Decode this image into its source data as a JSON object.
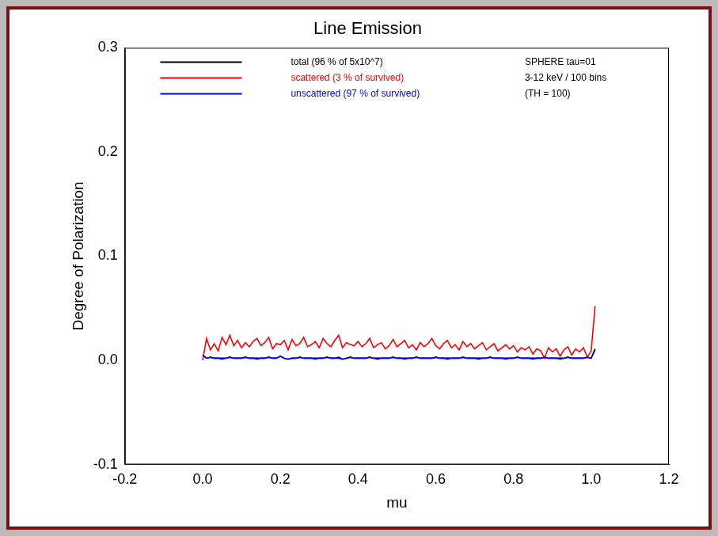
{
  "chart_data": {
    "type": "line",
    "title": "Line Emission",
    "x_label": "mu",
    "y_label": "Degree of Polarization",
    "xlim": [
      -0.2,
      1.2
    ],
    "xticks": [
      -0.2,
      {
        "value": 0,
        "label": "0.0"
      },
      0.2,
      0.4,
      0.6,
      0.8,
      {
        "value": 1,
        "label": "1.0"
      },
      1.2
    ],
    "ylim": [
      -0.1,
      0.3
    ],
    "yticks": [
      -0.1,
      {
        "value": 0,
        "label": "0.0"
      },
      0.1,
      0.2,
      0.3
    ],
    "grid": false,
    "legend": "upper left",
    "annotations": [
      "SPHERE tau=01",
      "3-12 keV / 100 bins",
      "(TH = 100)"
    ],
    "x": [
      0,
      0.01,
      0.02,
      0.03,
      0.04,
      0.05,
      0.06,
      0.07,
      0.08,
      0.09,
      0.1,
      0.11,
      0.12,
      0.13,
      0.14,
      0.15,
      0.16,
      0.17,
      0.18,
      0.19,
      0.2,
      0.21,
      0.22,
      0.23,
      0.24,
      0.25,
      0.26,
      0.27,
      0.28,
      0.29,
      0.3,
      0.31,
      0.32,
      0.33,
      0.34,
      0.35,
      0.36,
      0.37,
      0.38,
      0.39,
      0.4,
      0.41,
      0.42,
      0.43,
      0.44,
      0.45,
      0.46,
      0.47,
      0.48,
      0.49,
      0.5,
      0.51,
      0.52,
      0.53,
      0.54,
      0.55,
      0.56,
      0.57,
      0.58,
      0.59,
      0.6,
      0.61,
      0.62,
      0.63,
      0.64,
      0.65,
      0.66,
      0.67,
      0.68,
      0.69,
      0.7,
      0.71,
      0.72,
      0.73,
      0.74,
      0.75,
      0.76,
      0.77,
      0.78,
      0.79,
      0.8,
      0.81,
      0.82,
      0.83,
      0.84,
      0.85,
      0.86,
      0.87,
      0.88,
      0.89,
      0.9,
      0.91,
      0.92,
      0.93,
      0.94,
      0.95,
      0.96,
      0.97,
      0.98,
      0.99,
      1,
      1.01
    ],
    "series": [
      {
        "name": "total (96 % of 5x10^7)",
        "color": "#000000",
        "values": [
          0.005,
          0.002,
          0.003,
          0.002,
          0.002,
          0.002,
          0.002,
          0.003,
          0.002,
          0.002,
          0.002,
          0.003,
          0.002,
          0.002,
          0.002,
          0.002,
          0.002,
          0.003,
          0.002,
          0.002,
          0.004,
          0.002,
          0.001,
          0.002,
          0.002,
          0.003,
          0.002,
          0.002,
          0.002,
          0.002,
          0.002,
          0.002,
          0.003,
          0.002,
          0.002,
          0.003,
          0.001,
          0.002,
          0.003,
          0.002,
          0.002,
          0.002,
          0.002,
          0.003,
          0.002,
          0.002,
          0.002,
          0.002,
          0.002,
          0.003,
          0.002,
          0.002,
          0.002,
          0.002,
          0.002,
          0.003,
          0.002,
          0.002,
          0.002,
          0.002,
          0.003,
          0.002,
          0.002,
          0.002,
          0.002,
          0.002,
          0.002,
          0.003,
          0.002,
          0.002,
          0.002,
          0.002,
          0.002,
          0.002,
          0.003,
          0.002,
          0.002,
          0.002,
          0.002,
          0.002,
          0.002,
          0.003,
          0.002,
          0.002,
          0.002,
          0.002,
          0.002,
          0.002,
          0.003,
          0.002,
          0.002,
          0.002,
          0.002,
          0.002,
          0.003,
          0.002,
          0.002,
          0.002,
          0.002,
          0.003,
          0.002,
          0.011
        ]
      },
      {
        "name": "scattered (3 % of survived)",
        "color": "#ff0000",
        "values": [
          0.0,
          0.021,
          0.01,
          0.016,
          0.009,
          0.022,
          0.015,
          0.024,
          0.014,
          0.019,
          0.012,
          0.017,
          0.013,
          0.018,
          0.021,
          0.014,
          0.017,
          0.022,
          0.011,
          0.016,
          0.015,
          0.019,
          0.01,
          0.02,
          0.014,
          0.016,
          0.022,
          0.013,
          0.015,
          0.018,
          0.012,
          0.021,
          0.016,
          0.013,
          0.019,
          0.024,
          0.012,
          0.017,
          0.015,
          0.014,
          0.018,
          0.013,
          0.016,
          0.021,
          0.012,
          0.015,
          0.017,
          0.011,
          0.014,
          0.02,
          0.013,
          0.016,
          0.019,
          0.012,
          0.015,
          0.01,
          0.017,
          0.013,
          0.016,
          0.021,
          0.014,
          0.011,
          0.016,
          0.019,
          0.012,
          0.015,
          0.01,
          0.018,
          0.013,
          0.016,
          0.011,
          0.014,
          0.017,
          0.01,
          0.013,
          0.016,
          0.009,
          0.012,
          0.015,
          0.011,
          0.014,
          0.008,
          0.012,
          0.01,
          0.013,
          0.006,
          0.011,
          0.009,
          0.002,
          0.012,
          0.008,
          0.011,
          0.004,
          0.01,
          0.013,
          0.005,
          0.011,
          0.008,
          0.012,
          0.003,
          0.009,
          0.052
        ]
      },
      {
        "name": "unscattered (97 % of survived)",
        "color": "#0000ff",
        "values": [
          0.005,
          0.002,
          0.003,
          0.002,
          0.002,
          0.001,
          0.002,
          0.003,
          0.002,
          0.002,
          0.002,
          0.003,
          0.002,
          0.002,
          0.001,
          0.002,
          0.002,
          0.003,
          0.002,
          0.002,
          0.004,
          0.002,
          0.001,
          0.002,
          0.002,
          0.003,
          0.002,
          0.002,
          0.002,
          0.001,
          0.002,
          0.002,
          0.003,
          0.002,
          0.002,
          0.002,
          0.001,
          0.002,
          0.003,
          0.002,
          0.002,
          0.002,
          0.002,
          0.003,
          0.002,
          0.001,
          0.002,
          0.002,
          0.002,
          0.003,
          0.002,
          0.002,
          0.001,
          0.002,
          0.002,
          0.003,
          0.002,
          0.002,
          0.002,
          0.002,
          0.003,
          0.002,
          0.002,
          0.001,
          0.002,
          0.002,
          0.002,
          0.003,
          0.002,
          0.002,
          0.002,
          0.001,
          0.002,
          0.002,
          0.003,
          0.002,
          0.002,
          0.002,
          0.001,
          0.002,
          0.002,
          0.003,
          0.002,
          0.002,
          0.002,
          0.001,
          0.002,
          0.002,
          0.003,
          0.002,
          0.002,
          0.002,
          0.001,
          0.002,
          0.003,
          0.002,
          0.002,
          0.002,
          0.002,
          0.003,
          0.002,
          0.01
        ]
      }
    ]
  }
}
